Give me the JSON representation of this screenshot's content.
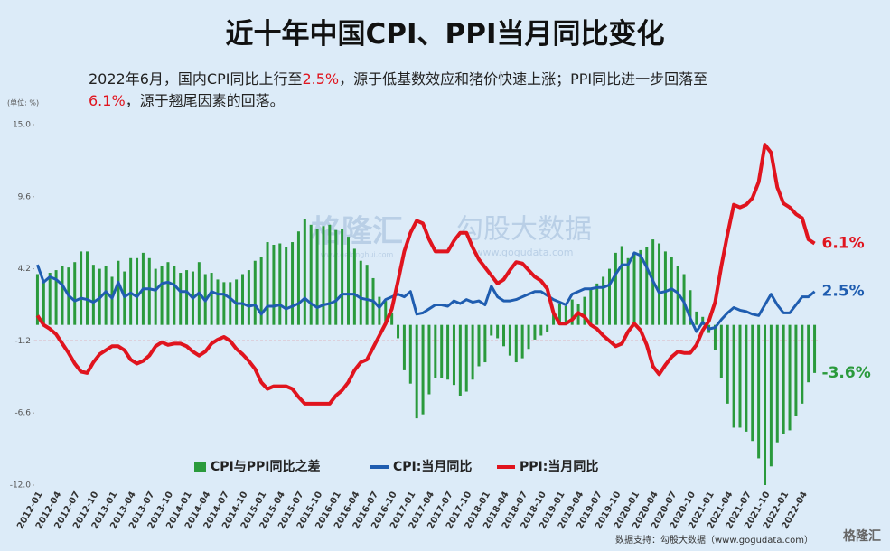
{
  "chart_data": {
    "type": "bar_line",
    "title": "近十年中国CPI、PPI当月同比变化",
    "subtitle": [
      "2022年6月，国内CPI同比上行至",
      "2.5%",
      "，源于低基数效应和猪价快速上涨；PPI同比进一步回落至",
      "6.1%",
      "，源于翘尾因素的回落。"
    ],
    "unit_label": "(单位: %)",
    "watermarks": [
      "格隆汇",
      "www.gelonghui.com",
      "勾股大数据",
      "www.gogudata.com"
    ],
    "source": "数据支持：勾股大数据（www.gogudata.com）",
    "logo": "格隆汇",
    "legend": "bottom",
    "ylim": [
      -12,
      15
    ],
    "yticks": [
      {
        "value": 15,
        "label": "15.0"
      },
      9.6,
      4.2,
      -1.2,
      -6.6,
      {
        "value": -12,
        "label": "-12.0"
      }
    ],
    "reference_line": {
      "value": -1.2,
      "color": "#e0141e"
    },
    "categories": [
      "2012-01",
      null,
      null,
      "2012-04",
      null,
      null,
      "2012-07",
      null,
      null,
      "2012-10",
      null,
      null,
      "2013-01",
      null,
      null,
      "2013-04",
      null,
      null,
      "2013-07",
      null,
      null,
      "2013-10",
      null,
      null,
      "2014-01",
      null,
      null,
      "2014-04",
      null,
      null,
      "2014-07",
      null,
      null,
      "2014-10",
      null,
      null,
      "2015-01",
      null,
      null,
      "2015-04",
      null,
      null,
      "2015-07",
      null,
      null,
      "2015-10",
      null,
      null,
      "2016-01",
      null,
      null,
      "2016-04",
      null,
      null,
      "2016-07",
      null,
      null,
      "2016-10",
      null,
      null,
      "2017-01",
      null,
      null,
      "2017-04",
      null,
      null,
      "2017-07",
      null,
      null,
      "2017-10",
      null,
      null,
      "2018-01",
      null,
      null,
      "2018-04",
      null,
      null,
      "2018-07",
      null,
      null,
      "2018-10",
      null,
      null,
      "2019-01",
      null,
      null,
      "2019-04",
      null,
      null,
      "2019-07",
      null,
      null,
      "2019-10",
      null,
      null,
      "2020-01",
      null,
      null,
      "2020-04",
      null,
      null,
      "2020-07",
      null,
      null,
      "2020-10",
      null,
      null,
      "2021-01",
      null,
      null,
      "2021-04",
      null,
      null,
      "2021-07",
      null,
      null,
      "2021-10",
      null,
      null,
      "2022-01",
      null,
      null,
      "2022-04",
      null,
      null
    ],
    "series": [
      {
        "name": "CPI与PPI同比之差",
        "kind": "bar",
        "color": "#2a9a3c",
        "values": [
          3.8,
          3.2,
          3.9,
          4.1,
          4.4,
          4.3,
          4.7,
          5.5,
          5.5,
          4.5,
          4.2,
          4.4,
          3.6,
          4.8,
          4.0,
          5.0,
          5.0,
          5.4,
          5.0,
          4.2,
          4.4,
          4.7,
          4.4,
          3.9,
          4.1,
          4.0,
          4.7,
          3.8,
          3.9,
          3.4,
          3.2,
          3.2,
          3.4,
          3.8,
          4.1,
          4.8,
          5.1,
          6.2,
          6.0,
          6.1,
          5.8,
          6.2,
          7.0,
          7.9,
          7.5,
          7.2,
          7.4,
          7.5,
          7.1,
          7.2,
          6.6,
          5.7,
          4.8,
          4.5,
          3.5,
          2.1,
          1.8,
          0.9,
          -1.0,
          -3.4,
          -4.4,
          -7.0,
          -6.7,
          -5.2,
          -4.0,
          -4.0,
          -4.1,
          -4.5,
          -5.3,
          -5.0,
          -4.1,
          -3.1,
          -2.8,
          -0.8,
          -1.0,
          -1.6,
          -2.3,
          -2.8,
          -2.5,
          -1.8,
          -1.1,
          -0.8,
          -0.5,
          1.0,
          1.6,
          1.4,
          1.9,
          1.6,
          2.1,
          2.7,
          3.1,
          3.6,
          4.2,
          5.4,
          5.9,
          5.0,
          5.3,
          5.6,
          5.8,
          6.4,
          6.1,
          5.5,
          5.1,
          4.4,
          3.8,
          2.6,
          1.0,
          0.6,
          -0.6,
          -1.9,
          -4.0,
          -5.9,
          -7.7,
          -7.7,
          -8.0,
          -8.7,
          -10.0,
          -12.0,
          -10.6,
          -8.8,
          -8.2,
          -7.9,
          -6.8,
          -5.9,
          -4.3,
          -3.6
        ],
        "value_labels": [
          null,
          null,
          null,
          null,
          null,
          null,
          null,
          null,
          null,
          null,
          null,
          null,
          null,
          null,
          null,
          null,
          null,
          null,
          null,
          null,
          null,
          null,
          null,
          null,
          null,
          null,
          null,
          null,
          null,
          null,
          null,
          null,
          null,
          null,
          null,
          null,
          null,
          null,
          null,
          null,
          null,
          null,
          null,
          null,
          null,
          null,
          null,
          null,
          null,
          null,
          null,
          null,
          null,
          null,
          null,
          null,
          null,
          null,
          null,
          null,
          null,
          null,
          null,
          null,
          null,
          null,
          null,
          null,
          null,
          null,
          null,
          null,
          null,
          null,
          null,
          null,
          null,
          null,
          null,
          null,
          null,
          null,
          null,
          null,
          null,
          null,
          null,
          null,
          null,
          null,
          null,
          null,
          null,
          null,
          null,
          null,
          null,
          null,
          null,
          null,
          null,
          null,
          null,
          null,
          null,
          null,
          null,
          null,
          null,
          null,
          null,
          null,
          null,
          null,
          null,
          null,
          null,
          null,
          null,
          null,
          null,
          null,
          null,
          null,
          null,
          "-3.6%"
        ]
      },
      {
        "name": "CPI:当月同比",
        "kind": "line",
        "color": "#1f5db0",
        "values": [
          4.5,
          3.2,
          3.6,
          3.4,
          3.0,
          2.2,
          1.8,
          2.0,
          1.9,
          1.7,
          2.0,
          2.5,
          2.0,
          3.2,
          2.1,
          2.4,
          2.1,
          2.7,
          2.7,
          2.6,
          3.1,
          3.2,
          3.0,
          2.5,
          2.5,
          2.0,
          2.4,
          1.8,
          2.5,
          2.3,
          2.3,
          2.0,
          1.6,
          1.6,
          1.4,
          1.5,
          0.8,
          1.4,
          1.4,
          1.5,
          1.2,
          1.4,
          1.6,
          2.0,
          1.6,
          1.3,
          1.5,
          1.6,
          1.8,
          2.3,
          2.3,
          2.3,
          2.0,
          1.9,
          1.8,
          1.3,
          1.9,
          2.1,
          2.3,
          2.1,
          2.5,
          0.8,
          0.9,
          1.2,
          1.5,
          1.5,
          1.4,
          1.8,
          1.6,
          1.9,
          1.7,
          1.8,
          1.5,
          2.9,
          2.1,
          1.8,
          1.8,
          1.9,
          2.1,
          2.3,
          2.5,
          2.5,
          2.2,
          1.9,
          1.7,
          1.5,
          2.3,
          2.5,
          2.7,
          2.7,
          2.8,
          2.8,
          3.0,
          3.8,
          4.5,
          4.5,
          5.4,
          5.2,
          4.3,
          3.3,
          2.4,
          2.5,
          2.7,
          2.4,
          1.7,
          0.5,
          -0.5,
          0.2,
          -0.3,
          -0.2,
          0.4,
          0.9,
          1.3,
          1.1,
          1.0,
          0.8,
          0.7,
          1.5,
          2.3,
          1.5,
          0.9,
          0.9,
          1.5,
          2.1,
          2.1,
          2.5
        ],
        "value_labels": [
          null,
          null,
          null,
          null,
          null,
          null,
          null,
          null,
          null,
          null,
          null,
          null,
          null,
          null,
          null,
          null,
          null,
          null,
          null,
          null,
          null,
          null,
          null,
          null,
          null,
          null,
          null,
          null,
          null,
          null,
          null,
          null,
          null,
          null,
          null,
          null,
          null,
          null,
          null,
          null,
          null,
          null,
          null,
          null,
          null,
          null,
          null,
          null,
          null,
          null,
          null,
          null,
          null,
          null,
          null,
          null,
          null,
          null,
          null,
          null,
          null,
          null,
          null,
          null,
          null,
          null,
          null,
          null,
          null,
          null,
          null,
          null,
          null,
          null,
          null,
          null,
          null,
          null,
          null,
          null,
          null,
          null,
          null,
          null,
          null,
          null,
          null,
          null,
          null,
          null,
          null,
          null,
          null,
          null,
          null,
          null,
          null,
          null,
          null,
          null,
          null,
          null,
          null,
          null,
          null,
          null,
          null,
          null,
          null,
          null,
          null,
          null,
          null,
          null,
          null,
          null,
          null,
          null,
          null,
          null,
          null,
          null,
          null,
          null,
          null,
          "2.5%"
        ]
      },
      {
        "name": "PPI:当月同比",
        "kind": "line",
        "color": "#e0141e",
        "values": [
          0.7,
          0.0,
          -0.3,
          -0.7,
          -1.4,
          -2.1,
          -2.9,
          -3.5,
          -3.6,
          -2.8,
          -2.2,
          -1.9,
          -1.6,
          -1.6,
          -1.9,
          -2.6,
          -2.9,
          -2.7,
          -2.3,
          -1.6,
          -1.3,
          -1.5,
          -1.4,
          -1.4,
          -1.6,
          -2.0,
          -2.3,
          -2.0,
          -1.4,
          -1.1,
          -0.9,
          -1.2,
          -1.8,
          -2.2,
          -2.7,
          -3.3,
          -4.3,
          -4.8,
          -4.6,
          -4.6,
          -4.6,
          -4.8,
          -5.4,
          -5.9,
          -5.9,
          -5.9,
          -5.9,
          -5.9,
          -5.3,
          -4.9,
          -4.3,
          -3.4,
          -2.8,
          -2.6,
          -1.7,
          -0.8,
          0.1,
          1.2,
          3.3,
          5.5,
          6.9,
          7.8,
          7.6,
          6.4,
          5.5,
          5.5,
          5.5,
          6.3,
          6.9,
          6.9,
          5.8,
          4.9,
          4.3,
          3.7,
          3.1,
          3.4,
          4.1,
          4.7,
          4.6,
          4.1,
          3.6,
          3.3,
          2.7,
          0.9,
          0.1,
          0.1,
          0.4,
          0.9,
          0.6,
          0.0,
          -0.3,
          -0.8,
          -1.2,
          -1.6,
          -1.4,
          -0.5,
          0.1,
          -0.4,
          -1.5,
          -3.1,
          -3.7,
          -3.0,
          -2.4,
          -2.0,
          -2.1,
          -2.1,
          -1.5,
          -0.4,
          0.3,
          1.7,
          4.4,
          6.8,
          9.0,
          8.8,
          9.0,
          9.5,
          10.7,
          13.5,
          12.9,
          10.3,
          9.1,
          8.8,
          8.3,
          8.0,
          6.4,
          6.1
        ],
        "value_labels": [
          null,
          null,
          null,
          null,
          null,
          null,
          null,
          null,
          null,
          null,
          null,
          null,
          null,
          null,
          null,
          null,
          null,
          null,
          null,
          null,
          null,
          null,
          null,
          null,
          null,
          null,
          null,
          null,
          null,
          null,
          null,
          null,
          null,
          null,
          null,
          null,
          null,
          null,
          null,
          null,
          null,
          null,
          null,
          null,
          null,
          null,
          null,
          null,
          null,
          null,
          null,
          null,
          null,
          null,
          null,
          null,
          null,
          null,
          null,
          null,
          null,
          null,
          null,
          null,
          null,
          null,
          null,
          null,
          null,
          null,
          null,
          null,
          null,
          null,
          null,
          null,
          null,
          null,
          null,
          null,
          null,
          null,
          null,
          null,
          null,
          null,
          null,
          null,
          null,
          null,
          null,
          null,
          null,
          null,
          null,
          null,
          null,
          null,
          null,
          null,
          null,
          null,
          null,
          null,
          null,
          null,
          null,
          null,
          null,
          null,
          null,
          null,
          null,
          null,
          null,
          null,
          null,
          null,
          null,
          null,
          null,
          null,
          null,
          null,
          null,
          "6.1%"
        ]
      }
    ]
  }
}
